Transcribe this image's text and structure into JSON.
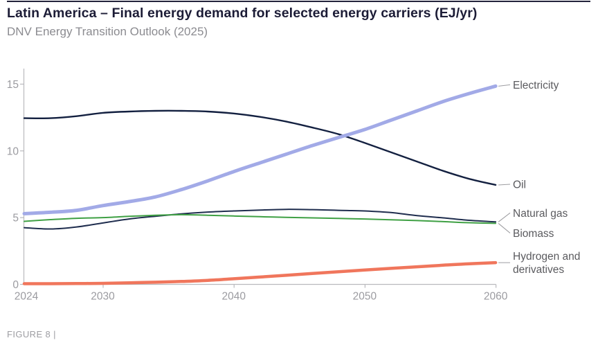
{
  "header": {
    "title": "Latin America – Final energy demand for selected energy carriers (EJ/yr)",
    "subtitle": "DNV Energy Transition Outlook (2025)"
  },
  "footer": {
    "figure_label": "FIGURE 8 |"
  },
  "colors": {
    "electricity": "#a2aae7",
    "oil": "#132040",
    "natural_gas": "#1f2d4e",
    "biomass": "#3fa044",
    "hydrogen": "#f0765c",
    "axis": "#b9b9bd",
    "tick_text": "#9b9ba0",
    "series_label_text": "#5a5a5e",
    "leader_line": "#9c9ca0",
    "title_text": "#1c1c36",
    "subtitle_text": "#8b8b90",
    "top_rule": "#23233b"
  },
  "chart_data": {
    "type": "line",
    "title": "Latin America – Final energy demand for selected energy carriers (EJ/yr)",
    "subtitle": "DNV Energy Transition Outlook (2025)",
    "xlabel": "",
    "ylabel": "EJ/yr",
    "xlim": [
      2024,
      2060
    ],
    "ylim": [
      0,
      16.2
    ],
    "x_ticks": [
      2024,
      2030,
      2040,
      2050,
      2060
    ],
    "y_ticks": [
      0,
      5,
      10,
      15
    ],
    "grid": false,
    "legend_position": "labels-at-line-ends-right",
    "x": [
      2024,
      2026,
      2028,
      2030,
      2032,
      2034,
      2036,
      2038,
      2040,
      2042,
      2044,
      2046,
      2048,
      2050,
      2052,
      2054,
      2056,
      2058,
      2060
    ],
    "series": [
      {
        "name": "Oil",
        "label_lines": [
          "Oil"
        ],
        "color": "#132040",
        "stroke_width": 2.4,
        "label_offset_y": -1,
        "values": [
          12.45,
          12.45,
          12.6,
          12.85,
          12.95,
          13.0,
          13.0,
          12.95,
          12.8,
          12.55,
          12.2,
          11.75,
          11.25,
          10.6,
          9.9,
          9.2,
          8.5,
          7.9,
          7.45
        ]
      },
      {
        "name": "Natural gas",
        "label_lines": [
          "Natural gas"
        ],
        "color": "#1f2d4e",
        "stroke_width": 2,
        "label_offset_y": -13,
        "values": [
          4.25,
          4.15,
          4.3,
          4.6,
          4.9,
          5.1,
          5.28,
          5.42,
          5.5,
          5.57,
          5.62,
          5.6,
          5.55,
          5.5,
          5.38,
          5.15,
          4.98,
          4.8,
          4.68
        ]
      },
      {
        "name": "Biomass",
        "label_lines": [
          "Biomass"
        ],
        "color": "#3fa044",
        "stroke_width": 2,
        "label_offset_y": 14,
        "values": [
          4.72,
          4.85,
          4.95,
          5.0,
          5.1,
          5.18,
          5.22,
          5.18,
          5.12,
          5.07,
          5.02,
          4.98,
          4.94,
          4.9,
          4.84,
          4.78,
          4.7,
          4.62,
          4.57
        ]
      },
      {
        "name": "Electricity",
        "label_lines": [
          "Electricity"
        ],
        "color": "#a2aae7",
        "stroke_width": 5,
        "label_offset_y": -2,
        "values": [
          5.3,
          5.4,
          5.55,
          5.9,
          6.2,
          6.55,
          7.1,
          7.75,
          8.45,
          9.1,
          9.75,
          10.4,
          11.0,
          11.6,
          12.3,
          13.0,
          13.7,
          14.3,
          14.85
        ]
      },
      {
        "name": "Hydrogen and derivatives",
        "label_lines": [
          "Hydrogen and",
          "derivatives"
        ],
        "color": "#f0765c",
        "stroke_width": 4.5,
        "label_offset_y": 0,
        "values": [
          0.05,
          0.05,
          0.06,
          0.08,
          0.12,
          0.16,
          0.22,
          0.3,
          0.42,
          0.55,
          0.68,
          0.82,
          0.95,
          1.08,
          1.2,
          1.32,
          1.44,
          1.54,
          1.63
        ]
      }
    ]
  }
}
